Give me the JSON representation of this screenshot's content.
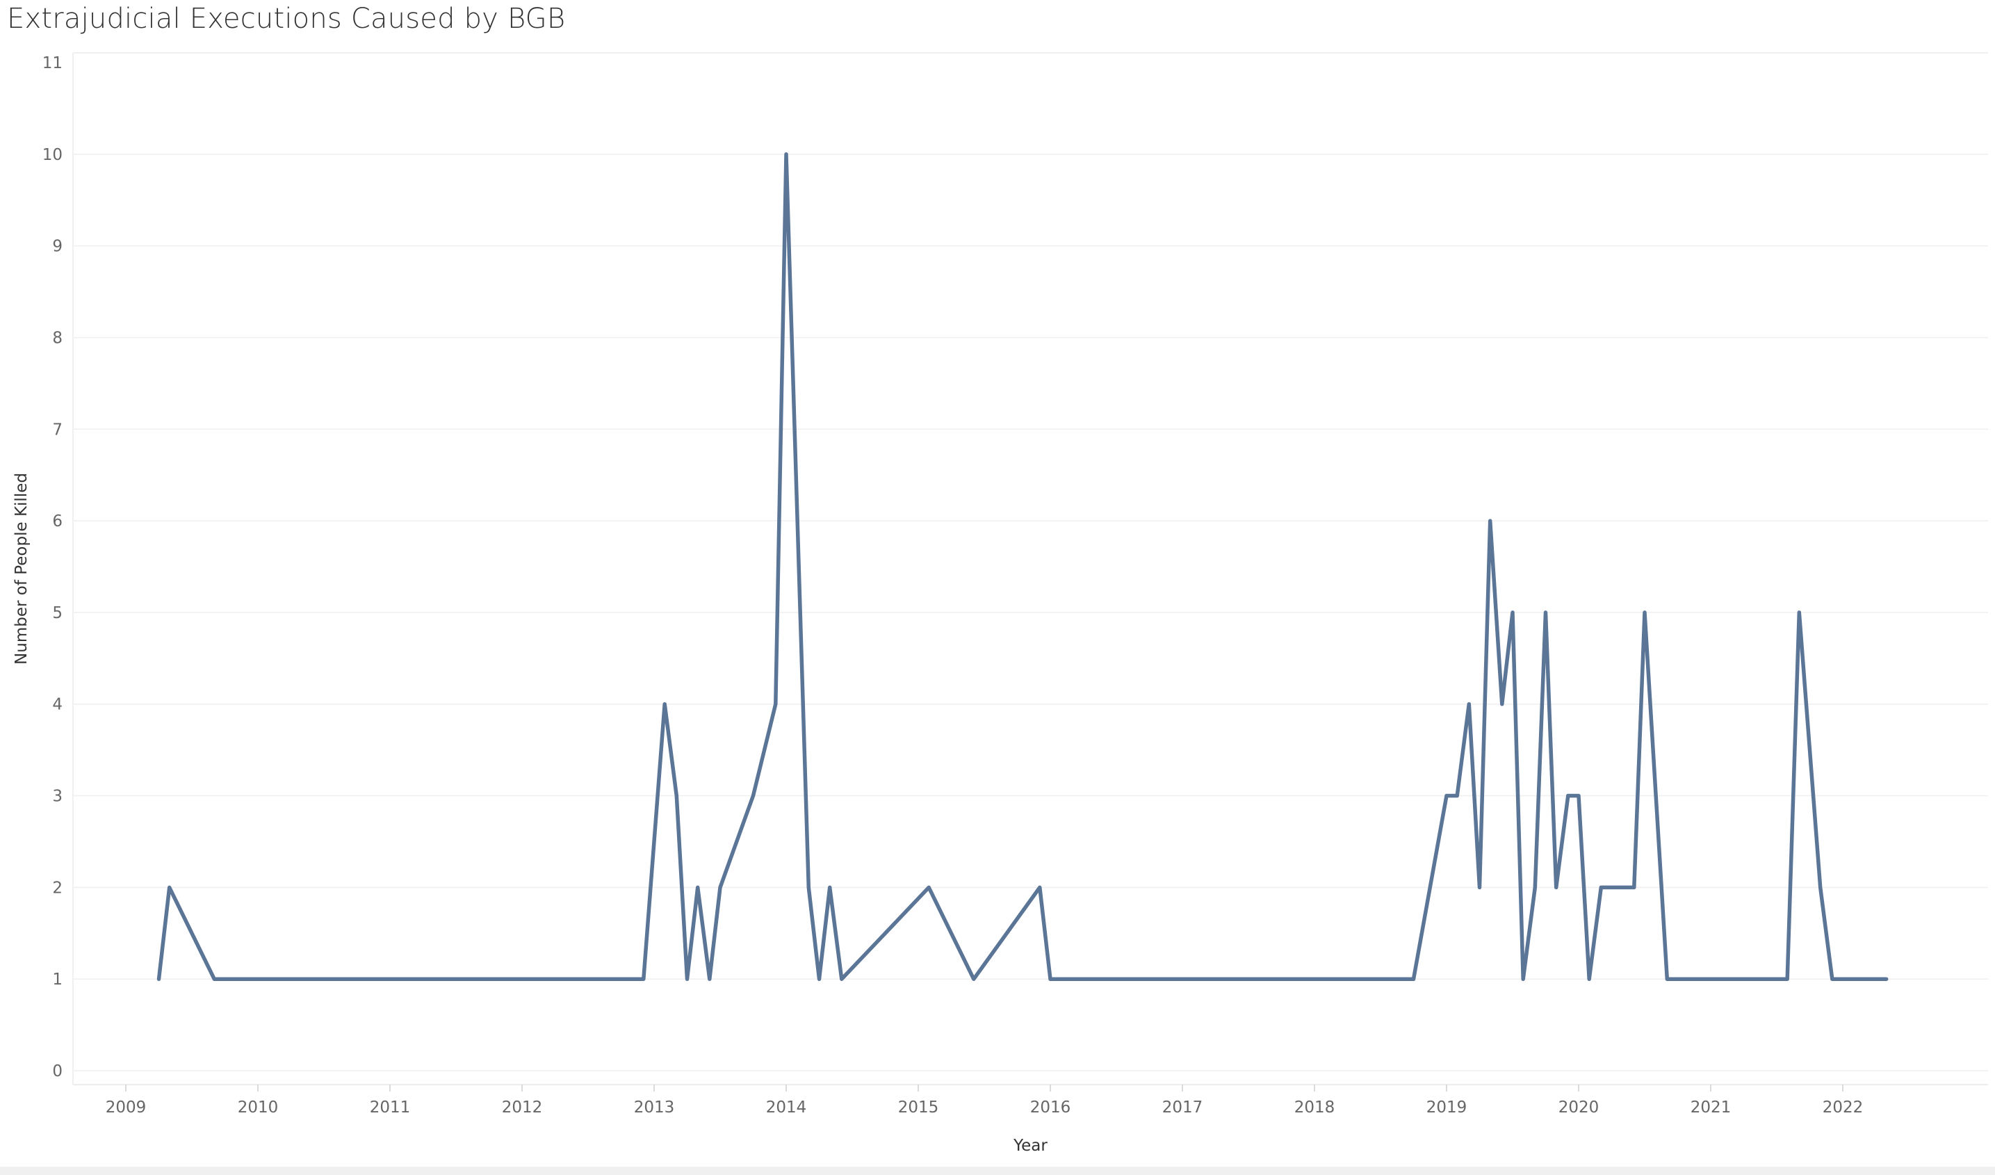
{
  "chart_data": {
    "type": "line",
    "title": "Extrajudicial Executions Caused by BGB",
    "xlabel": "Year",
    "ylabel": "Number of People Killed",
    "xlim": [
      2008.6,
      2023.1
    ],
    "ylim": [
      0,
      11
    ],
    "x_ticks": [
      "2009",
      "2010",
      "2011",
      "2012",
      "2013",
      "2014",
      "2015",
      "2016",
      "2017",
      "2018",
      "2019",
      "2020",
      "2021",
      "2022"
    ],
    "y_ticks": [
      0,
      1,
      2,
      3,
      4,
      5,
      6,
      7,
      8,
      9,
      10,
      11
    ],
    "grid": "horizontal",
    "color": "#5b7597",
    "series": [
      {
        "x": [
          2009.25,
          2009.33,
          2009.67,
          2012.92,
          2013.08,
          2013.17,
          2013.25,
          2013.33,
          2013.42,
          2013.5,
          2013.75,
          2013.92,
          2014.0,
          2014.17,
          2014.25,
          2014.33,
          2014.42,
          2015.08,
          2015.42,
          2015.92,
          2016.0,
          2018.75,
          2019.0,
          2019.08,
          2019.17,
          2019.25,
          2019.33,
          2019.42,
          2019.5,
          2019.58,
          2019.67,
          2019.75,
          2019.83,
          2019.92,
          2020.0,
          2020.08,
          2020.17,
          2020.42,
          2020.5,
          2020.67,
          2021.58,
          2021.67,
          2021.83,
          2021.92,
          2022.33
        ],
        "y": [
          1,
          2,
          1,
          1,
          4,
          3,
          1,
          2,
          1,
          2,
          3,
          4,
          10,
          2,
          1,
          2,
          1,
          2,
          1,
          2,
          1,
          1,
          3,
          3,
          4,
          2,
          6,
          4,
          5,
          1,
          2,
          5,
          2,
          3,
          3,
          1,
          2,
          2,
          5,
          1,
          1,
          5,
          2,
          1,
          1
        ]
      }
    ]
  }
}
